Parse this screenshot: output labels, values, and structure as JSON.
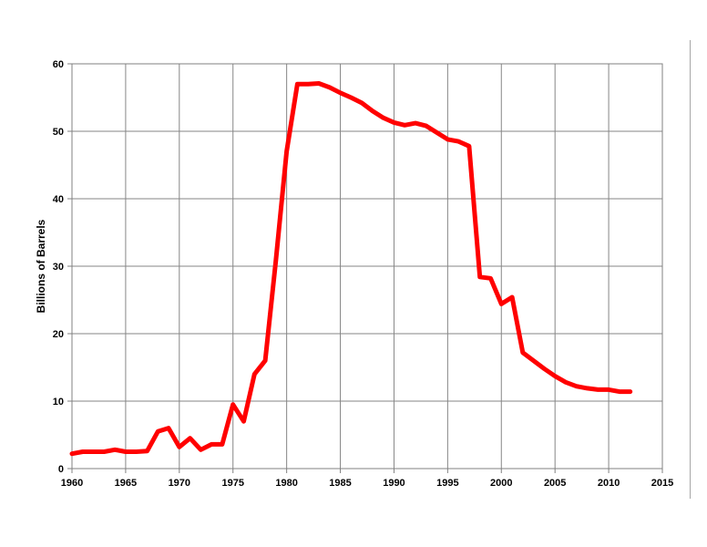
{
  "chart_data": {
    "type": "line",
    "title": "",
    "xlabel": "",
    "ylabel": "Billions of Barrels",
    "xlim": [
      1960,
      2015
    ],
    "ylim": [
      0,
      60
    ],
    "x_ticks": [
      "1960",
      "1965",
      "1970",
      "1975",
      "1980",
      "1985",
      "1990",
      "1995",
      "2000",
      "2005",
      "2010",
      "2015"
    ],
    "y_ticks": [
      "0",
      "10",
      "20",
      "30",
      "40",
      "50",
      "60"
    ],
    "grid": true,
    "legend": "none",
    "series": [
      {
        "color": "#ff0000",
        "x": [
          1960,
          1961,
          1962,
          1963,
          1964,
          1965,
          1966,
          1967,
          1968,
          1969,
          1970,
          1971,
          1972,
          1973,
          1974,
          1975,
          1976,
          1977,
          1978,
          1979,
          1980,
          1981,
          1982,
          1983,
          1984,
          1985,
          1986,
          1987,
          1988,
          1989,
          1990,
          1991,
          1992,
          1993,
          1994,
          1995,
          1996,
          1997,
          1998,
          1999,
          2000,
          2001,
          2002,
          2003,
          2004,
          2005,
          2006,
          2007,
          2008,
          2009,
          2010,
          2011,
          2012
        ],
        "y": [
          2.2,
          2.5,
          2.5,
          2.5,
          2.8,
          2.5,
          2.5,
          2.6,
          5.5,
          6.0,
          3.2,
          4.5,
          2.8,
          3.6,
          3.6,
          9.5,
          7.0,
          14.0,
          16.0,
          31.0,
          47.0,
          57.0,
          57.0,
          57.1,
          56.5,
          55.7,
          55.0,
          54.2,
          53.0,
          52.0,
          51.3,
          50.9,
          51.2,
          50.8,
          49.8,
          48.8,
          48.5,
          47.8,
          28.4,
          28.2,
          24.4,
          25.4,
          17.2,
          16.0,
          14.8,
          13.7,
          12.8,
          12.2,
          11.9,
          11.7,
          11.7,
          11.4,
          11.4
        ]
      }
    ]
  }
}
